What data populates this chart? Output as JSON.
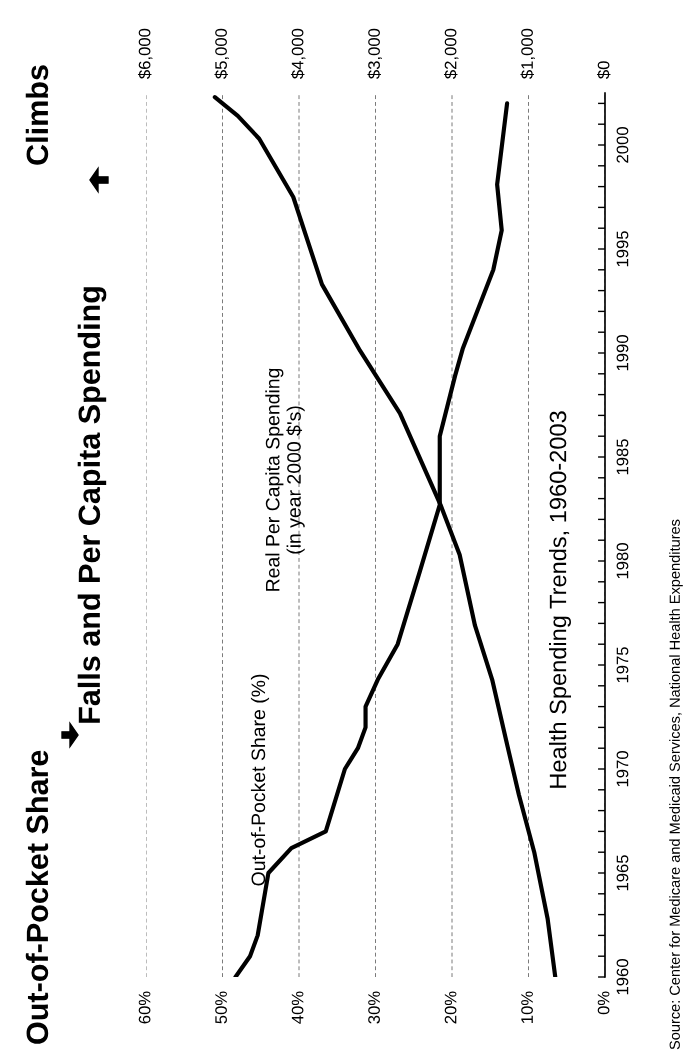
{
  "chart_data": {
    "type": "line",
    "title": "Out-of-Pocket Share",
    "subtitle": "Falls and Per Capita Spending",
    "annotations": [
      "Climbs",
      "Health Spending Trends, 1960-2003",
      "Source: Center for Medicare and Medicaid Services, National Health Expenditures"
    ],
    "series": [
      {
        "name": "Out-of-Pocket Share (%)",
        "color": "#000000",
        "x": [
          48.3,
          46.4,
          45.4,
          44.0,
          41.0,
          36.5,
          34.0,
          32.3,
          31.3,
          31.3,
          29.7,
          27.1,
          24.2,
          21.6,
          21.6,
          19.6,
          18.6,
          14.6,
          13.5,
          14.1,
          12.8
        ],
        "values": [
          1960,
          1961,
          1962,
          1965,
          1966.2,
          1967,
          1970,
          1971,
          1972,
          1973,
          1974.3,
          1976,
          1979.5,
          1982.7,
          1986,
          1988.9,
          1990.2,
          1994,
          1995.9,
          1998.1,
          2002
        ]
      },
      {
        "name": "Real Per Capita Spending\n(in year 2000 $'s)",
        "color": "#000000",
        "axis": "x2",
        "x": [
          650,
          750,
          925,
          1125,
          1300,
          1475,
          1700,
          1900,
          2150,
          2680,
          3200,
          3700,
          4075,
          4520,
          4800,
          5100
        ],
        "values": [
          1960,
          1962.8,
          1966,
          1968.75,
          1971.5,
          1974.3,
          1976.9,
          1980.3,
          1982.7,
          1987.1,
          1990.1,
          1993.3,
          1997.5,
          2000.3,
          2001.4,
          2002.3
        ]
      }
    ],
    "ylim": [
      1960,
      2002.5
    ],
    "yticks": [
      1960,
      {
        "value": 1961,
        "label": null
      },
      {
        "value": 1962,
        "label": null
      },
      {
        "value": 1963,
        "label": null
      },
      {
        "value": 1964,
        "label": null
      },
      1965,
      {
        "value": 1966,
        "label": null
      },
      {
        "value": 1967,
        "label": null
      },
      {
        "value": 1968,
        "label": null
      },
      {
        "value": 1969,
        "label": null
      },
      1970,
      {
        "value": 1971,
        "label": null
      },
      {
        "value": 1972,
        "label": null
      },
      {
        "value": 1973,
        "label": null
      },
      {
        "value": 1974,
        "label": null
      },
      1975,
      {
        "value": 1976,
        "label": null
      },
      {
        "value": 1977,
        "label": null
      },
      {
        "value": 1978,
        "label": null
      },
      {
        "value": 1979,
        "label": null
      },
      1980,
      {
        "value": 1981,
        "label": null
      },
      {
        "value": 1982,
        "label": null
      },
      {
        "value": 1983,
        "label": null
      },
      {
        "value": 1984,
        "label": null
      },
      1985,
      {
        "value": 1986,
        "label": null
      },
      {
        "value": 1987,
        "label": null
      },
      {
        "value": 1988,
        "label": null
      },
      {
        "value": 1989,
        "label": null
      },
      1990,
      {
        "value": 1991,
        "label": null
      },
      {
        "value": 1992,
        "label": null
      },
      {
        "value": 1993,
        "label": null
      },
      {
        "value": 1994,
        "label": null
      },
      1995,
      {
        "value": 1996,
        "label": null
      },
      {
        "value": 1997,
        "label": null
      },
      {
        "value": 1998,
        "label": null
      },
      {
        "value": 1999,
        "label": null
      },
      2000,
      {
        "value": 2001,
        "label": null
      },
      {
        "value": 2002,
        "label": null
      }
    ],
    "xlim": [
      60,
      0
    ],
    "xticks": [
      {
        "value": 0,
        "label": "0%"
      },
      {
        "value": 10,
        "label": "10%"
      },
      {
        "value": 20,
        "label": "20%"
      },
      {
        "value": 30,
        "label": "30%"
      },
      {
        "value": 40,
        "label": "40%"
      },
      {
        "value": 50,
        "label": "50%"
      },
      {
        "value": 60,
        "label": "60%"
      }
    ],
    "x2lim": [
      6000,
      0
    ],
    "x2ticks": [
      {
        "value": 0,
        "label": "$0"
      },
      {
        "value": 1000,
        "label": "$1,000"
      },
      {
        "value": 2000,
        "label": "$2,000"
      },
      {
        "value": 3000,
        "label": "$3,000"
      },
      {
        "value": 4000,
        "label": "$4,000"
      },
      {
        "value": 5000,
        "label": "$5,000"
      },
      {
        "value": 6000,
        "label": "$6,000"
      }
    ],
    "grid": "x",
    "legend": false,
    "marker": "none",
    "line_style": "solid"
  }
}
